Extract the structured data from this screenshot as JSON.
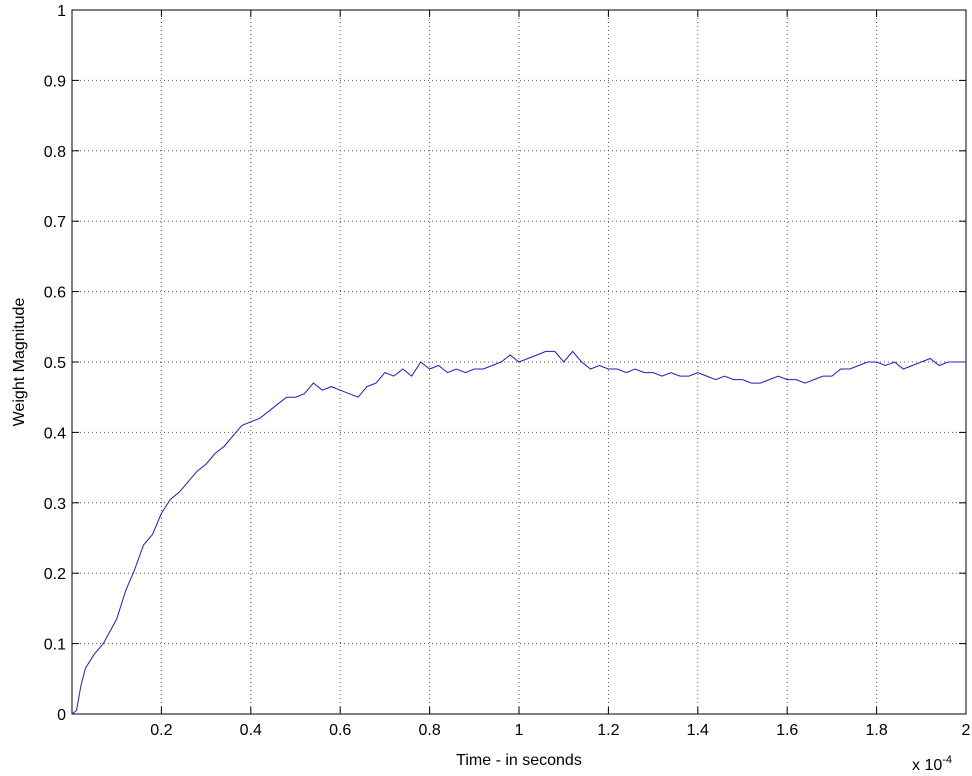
{
  "chart_data": {
    "type": "line",
    "title": "",
    "xlabel": "Time - in seconds",
    "ylabel": "Weight Magnitude",
    "x_multiplier_label": "x 10",
    "x_multiplier_exponent": "-4",
    "xlim": [
      0,
      2
    ],
    "ylim": [
      0,
      1
    ],
    "x_ticks": [
      0.2,
      0.4,
      0.6,
      0.8,
      1,
      1.2,
      1.4,
      1.6,
      1.8,
      2
    ],
    "x_tick_labels": [
      "0.2",
      "0.4",
      "0.6",
      "0.8",
      "1",
      "1.2",
      "1.4",
      "1.6",
      "1.8",
      "2"
    ],
    "y_ticks": [
      0,
      0.1,
      0.2,
      0.3,
      0.4,
      0.5,
      0.6,
      0.7,
      0.8,
      0.9,
      1
    ],
    "y_tick_labels": [
      "0",
      "0.1",
      "0.2",
      "0.3",
      "0.4",
      "0.5",
      "0.6",
      "0.7",
      "0.8",
      "0.9",
      "1"
    ],
    "grid": true,
    "line_color": "#1f1fb4",
    "series": [
      {
        "x": [
          0,
          0.01,
          0.02,
          0.03,
          0.05,
          0.07,
          0.1,
          0.12,
          0.14,
          0.16,
          0.18,
          0.2,
          0.22,
          0.24,
          0.26,
          0.28,
          0.3,
          0.32,
          0.34,
          0.36,
          0.38,
          0.4,
          0.42,
          0.44,
          0.46,
          0.48,
          0.5,
          0.52,
          0.54,
          0.56,
          0.58,
          0.6,
          0.62,
          0.64,
          0.66,
          0.68,
          0.7,
          0.72,
          0.74,
          0.76,
          0.78,
          0.8,
          0.82,
          0.84,
          0.86,
          0.88,
          0.9,
          0.92,
          0.94,
          0.96,
          0.98,
          1.0,
          1.02,
          1.04,
          1.06,
          1.08,
          1.1,
          1.12,
          1.14,
          1.16,
          1.18,
          1.2,
          1.22,
          1.24,
          1.26,
          1.28,
          1.3,
          1.32,
          1.34,
          1.36,
          1.38,
          1.4,
          1.42,
          1.44,
          1.46,
          1.48,
          1.5,
          1.52,
          1.54,
          1.56,
          1.58,
          1.6,
          1.62,
          1.64,
          1.66,
          1.68,
          1.7,
          1.72,
          1.74,
          1.76,
          1.78,
          1.8,
          1.82,
          1.84,
          1.86,
          1.88,
          1.9,
          1.92,
          1.94,
          1.96,
          1.98,
          2.0
        ],
        "y": [
          0,
          0.005,
          0.04,
          0.065,
          0.085,
          0.1,
          0.135,
          0.175,
          0.205,
          0.24,
          0.255,
          0.285,
          0.305,
          0.315,
          0.33,
          0.345,
          0.355,
          0.37,
          0.38,
          0.395,
          0.41,
          0.415,
          0.42,
          0.43,
          0.44,
          0.45,
          0.45,
          0.455,
          0.47,
          0.46,
          0.465,
          0.46,
          0.455,
          0.45,
          0.465,
          0.47,
          0.485,
          0.48,
          0.49,
          0.48,
          0.5,
          0.49,
          0.495,
          0.485,
          0.49,
          0.485,
          0.49,
          0.49,
          0.495,
          0.5,
          0.51,
          0.5,
          0.505,
          0.51,
          0.515,
          0.515,
          0.5,
          0.515,
          0.5,
          0.49,
          0.495,
          0.49,
          0.49,
          0.485,
          0.49,
          0.485,
          0.485,
          0.48,
          0.485,
          0.48,
          0.48,
          0.485,
          0.48,
          0.475,
          0.48,
          0.475,
          0.475,
          0.47,
          0.47,
          0.475,
          0.48,
          0.475,
          0.475,
          0.47,
          0.475,
          0.48,
          0.48,
          0.49,
          0.49,
          0.495,
          0.5,
          0.5,
          0.495,
          0.5,
          0.49,
          0.495,
          0.5,
          0.505,
          0.495,
          0.5,
          0.5,
          0.5
        ]
      }
    ]
  }
}
